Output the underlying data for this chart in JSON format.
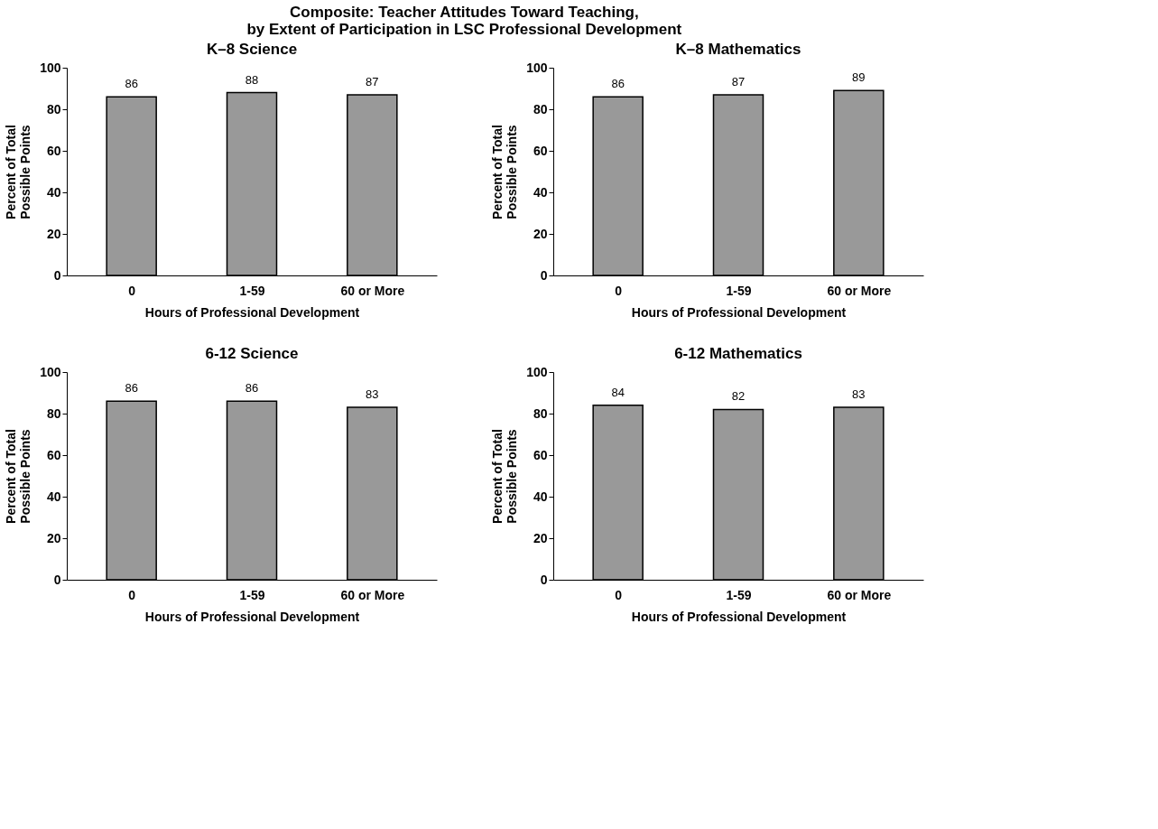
{
  "chart_data": [
    {
      "type": "bar",
      "title": "K–8 Science",
      "xlabel": "Hours of Professional Development",
      "ylabel": "Percent of Total\nPossible Points",
      "categories": [
        "0",
        "1-59",
        "60 or More"
      ],
      "values": [
        86,
        88,
        87
      ],
      "color": "#999999",
      "ylim": [
        0,
        100
      ],
      "yticks": [
        0,
        20,
        40,
        60,
        80,
        100
      ],
      "data_labels": true,
      "annotations": [
        "Composite: Teacher Attitudes Toward Teaching,\nby Extent of Participation in LSC Professional Development"
      ]
    },
    {
      "type": "bar",
      "title": "K–8 Mathematics",
      "xlabel": "Hours of Professional Development",
      "ylabel": "Percent of Total\nPossible Points",
      "categories": [
        "0",
        "1-59",
        "60 or More"
      ],
      "values": [
        86,
        87,
        89
      ],
      "color": "#999999",
      "ylim": [
        0,
        100
      ],
      "yticks": [
        0,
        20,
        40,
        60,
        80,
        100
      ],
      "data_labels": true
    },
    {
      "type": "bar",
      "title": "6-12 Science",
      "xlabel": "Hours of Professional Development",
      "ylabel": "Percent of Total\nPossible Points",
      "categories": [
        "0",
        "1-59",
        "60 or More"
      ],
      "values": [
        86,
        86,
        83
      ],
      "color": "#999999",
      "ylim": [
        0,
        100
      ],
      "yticks": [
        0,
        20,
        40,
        60,
        80,
        100
      ],
      "data_labels": true
    },
    {
      "type": "bar",
      "title": "6-12 Mathematics",
      "xlabel": "Hours of Professional Development",
      "ylabel": "Percent of Total\nPossible Points",
      "categories": [
        "0",
        "1-59",
        "60 or More"
      ],
      "values": [
        84,
        82,
        83
      ],
      "color": "#999999",
      "ylim": [
        0,
        100
      ],
      "yticks": [
        0,
        20,
        40,
        60,
        80,
        100
      ],
      "data_labels": true
    }
  ]
}
